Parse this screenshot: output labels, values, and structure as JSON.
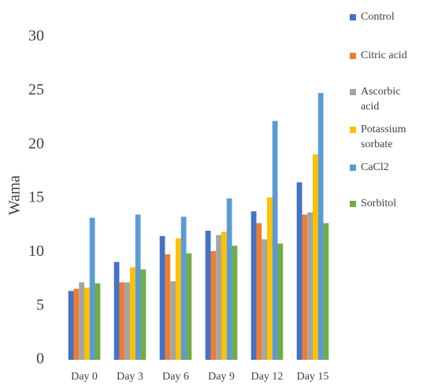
{
  "chart_data": {
    "type": "bar",
    "y_label": "Wama",
    "categories": [
      "Day 0",
      "Day 3",
      "Day 6",
      "Day 9",
      "Day 12",
      "Day 15"
    ],
    "series": [
      {
        "name": "Control",
        "color": "#4472c4",
        "values": [
          6.4,
          9.1,
          11.5,
          12.0,
          13.8,
          16.5
        ]
      },
      {
        "name": "Citric acid",
        "color": "#ed7d31",
        "values": [
          6.6,
          7.2,
          9.8,
          10.1,
          12.7,
          13.5
        ]
      },
      {
        "name": "Ascorbic acid",
        "color": "#a5a5a5",
        "values": [
          7.2,
          7.2,
          7.3,
          11.6,
          11.2,
          13.7
        ]
      },
      {
        "name": "Potassium sorbate",
        "color": "#ffc000",
        "values": [
          6.7,
          8.6,
          11.3,
          11.9,
          15.1,
          19.1
        ]
      },
      {
        "name": "CaCl2",
        "color": "#5b9bd5",
        "values": [
          13.2,
          13.5,
          13.3,
          15.0,
          22.2,
          24.8
        ]
      },
      {
        "name": "Sorbitol",
        "color": "#70ad47",
        "values": [
          7.1,
          8.4,
          9.9,
          10.6,
          10.8,
          12.7
        ]
      }
    ],
    "ylim": [
      0,
      30
    ],
    "yticks": [
      0,
      5,
      10,
      15,
      20,
      25,
      30
    ],
    "grid": false,
    "legend": "right"
  }
}
